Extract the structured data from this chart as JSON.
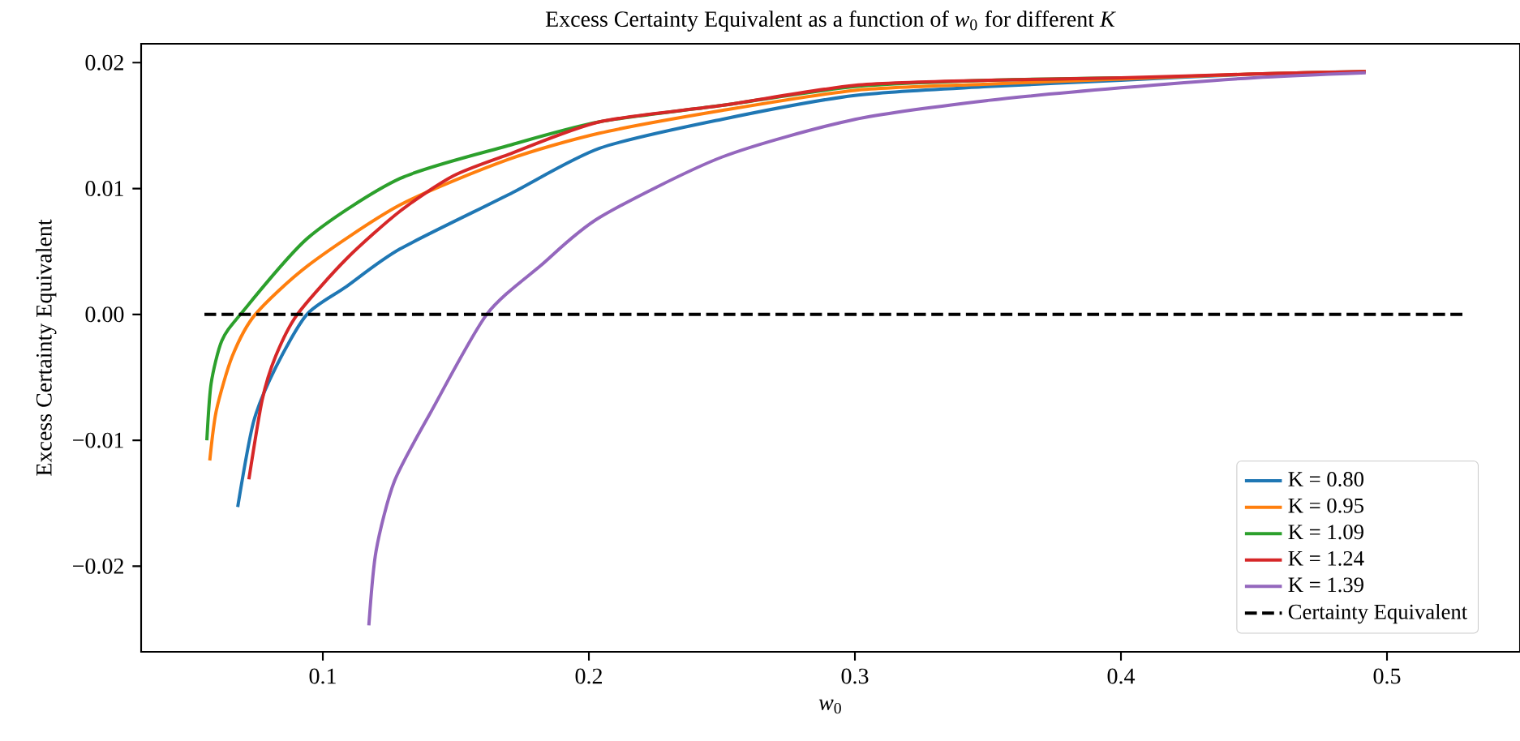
{
  "chart_data": {
    "type": "line",
    "title": "Excess Certainty Equivalent as a function of *w*$_{0}$ for different *K*",
    "xlabel": "*w*$_{0}$",
    "ylabel": "Excess Certainty Equivalent",
    "xlim": [
      0.0317,
      0.55
    ],
    "ylim": [
      -0.0268,
      0.0215
    ],
    "xticks": [
      0.1,
      0.2,
      0.3,
      0.4,
      0.5
    ],
    "yticks": [
      {
        "value": -0.02,
        "label": "−0.02"
      },
      {
        "value": -0.01,
        "label": "−0.01"
      },
      {
        "value": 0,
        "label": "0.00"
      },
      {
        "value": 0.01,
        "label": "0.01"
      },
      {
        "value": 0.02,
        "label": "0.02"
      }
    ],
    "legend": "bottom right",
    "grid": false,
    "marker": "none",
    "series": [
      {
        "name": "K = 0.80",
        "color": "#1f77b4",
        "x": [
          0.068,
          0.074,
          0.0823,
          0.094,
          0.1088,
          0.129,
          0.1697,
          0.204,
          0.25,
          0.3,
          0.35,
          0.4,
          0.45,
          0.492
        ],
        "values": [
          -0.0153,
          -0.0085,
          -0.0042,
          0.0,
          0.0022,
          0.0052,
          0.0095,
          0.0132,
          0.0155,
          0.0174,
          0.0181,
          0.0186,
          0.0191,
          0.0193
        ]
      },
      {
        "name": "K = 0.95",
        "color": "#ff7f0e",
        "x": [
          0.0575,
          0.06,
          0.066,
          0.0746,
          0.0945,
          0.129,
          0.1695,
          0.204,
          0.25,
          0.3,
          0.35,
          0.4,
          0.45,
          0.492
        ],
        "values": [
          -0.0116,
          -0.0076,
          -0.0033,
          0.0,
          0.0039,
          0.0087,
          0.0123,
          0.0144,
          0.0162,
          0.0178,
          0.0183,
          0.0187,
          0.0191,
          0.0193
        ]
      },
      {
        "name": "K = 1.09",
        "color": "#2ca02c",
        "x": [
          0.0564,
          0.058,
          0.062,
          0.069,
          0.0945,
          0.129,
          0.1695,
          0.204,
          0.25,
          0.3,
          0.35,
          0.4
        ],
        "values": [
          -0.01,
          -0.0055,
          -0.0021,
          0.0,
          0.0061,
          0.0108,
          0.0134,
          0.0153,
          0.0166,
          0.0181,
          0.0186,
          0.0188
        ]
      },
      {
        "name": "K = 1.24",
        "color": "#d62728",
        "x": [
          0.0722,
          0.0772,
          0.0823,
          0.0904,
          0.1088,
          0.129,
          0.149,
          0.1697,
          0.204,
          0.25,
          0.3,
          0.35,
          0.4,
          0.45,
          0.492
        ],
        "values": [
          -0.0131,
          -0.0068,
          -0.0033,
          0.0,
          0.0044,
          0.0082,
          0.011,
          0.0127,
          0.0153,
          0.0166,
          0.0182,
          0.0186,
          0.0188,
          0.0191,
          0.0193
        ]
      },
      {
        "name": "K = 1.39",
        "color": "#9467bd",
        "x": [
          0.1173,
          0.12,
          0.127,
          0.141,
          0.1616,
          0.182,
          0.204,
          0.25,
          0.3,
          0.35,
          0.4,
          0.45,
          0.492
        ],
        "values": [
          -0.0247,
          -0.0188,
          -0.0132,
          -0.0076,
          0.0,
          0.0039,
          0.0077,
          0.0125,
          0.0155,
          0.017,
          0.018,
          0.0188,
          0.0192
        ]
      },
      {
        "name": "Certainty Equivalent",
        "color": "#000000",
        "line_style": "dashed",
        "x": [
          0.0555,
          0.529
        ],
        "values": [
          0,
          0
        ]
      }
    ]
  }
}
